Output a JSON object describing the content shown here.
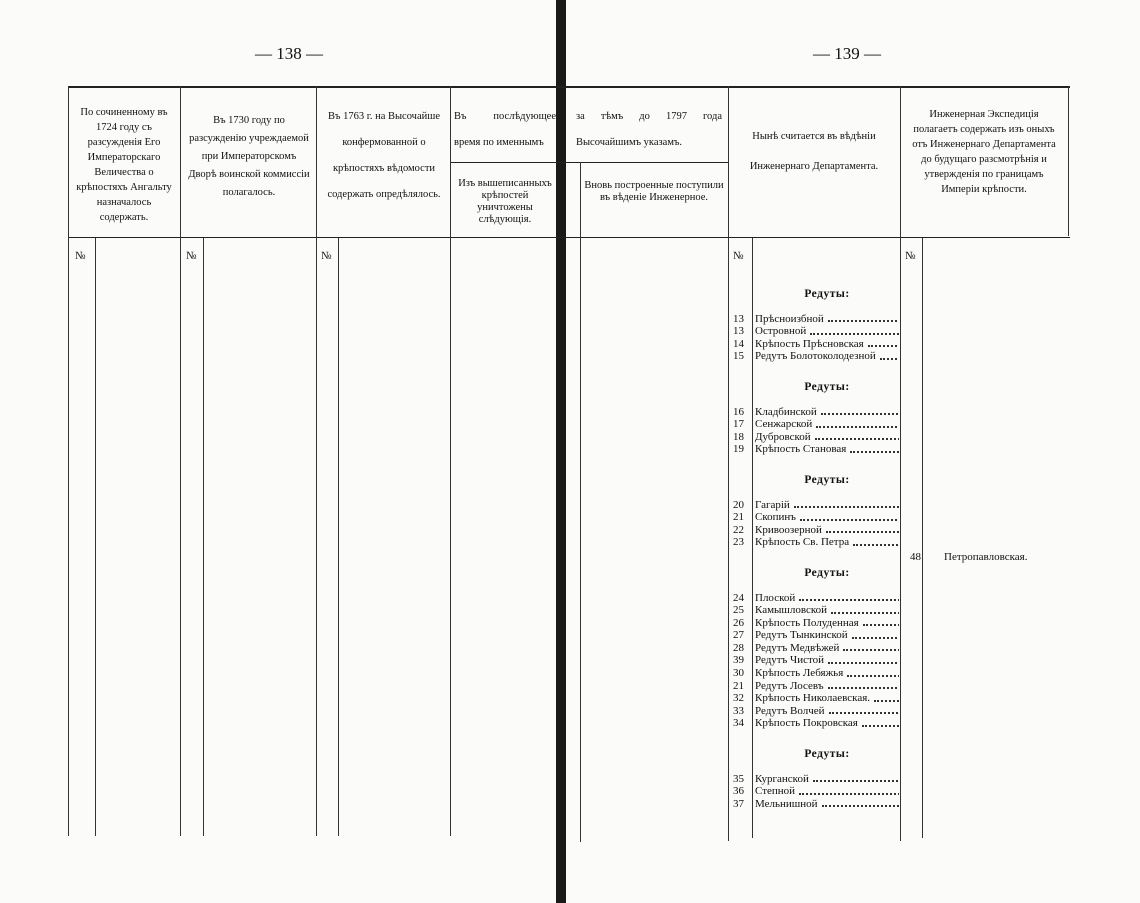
{
  "pages": {
    "left": "— 138 —",
    "right": "— 139 —"
  },
  "header": {
    "col1": "По сочиненному въ 1724 году съ разсужденія Его Императорскаго Величества о крѣпостяхъ Ангальту назначалось содержать.",
    "col2": "Въ 1730 году по разсужденію учреждаемой при Императорскомъ Дворѣ воинской коммиссіи полагалось.",
    "col3": "Въ 1763 г. на Высочайше конфермованной о крѣпостяхъ вѣдомости содержать опредѣлялось.",
    "col4_left": "Въ послѣдующее время по именнымъ",
    "col4_right": "за тѣмъ до 1797 года Высочайшимъ указамъ.",
    "col4_sub_left": "Изъ вышеписанныхъ крѣпостей уничтожены слѣдующія.",
    "col4_sub_right": "Вновь построенные поступили въ вѣденіе Инженерное.",
    "col6": "Нынѣ считается въ вѣдѣніи Инженернаго Департамента.",
    "col7": "Инженерная Экспедиція полагаетъ содержать изъ оныхъ отъ Инженернаго Департамента до будущаго разсмотрѣнія и утвержденія по границамъ Имперіи крѣпости."
  },
  "number_sign": "№",
  "entries": [
    {
      "heading": "Редуты:",
      "items": [
        {
          "number": 13,
          "name": "Прѣсноизбной"
        },
        {
          "number": 13,
          "name": "Островной"
        },
        {
          "number": 14,
          "name": "Крѣпость Прѣсновская"
        },
        {
          "number": 15,
          "name": "Редутъ Болотоколодезной"
        }
      ]
    },
    {
      "heading": "Редуты:",
      "items": [
        {
          "number": 16,
          "name": "Кладбинской"
        },
        {
          "number": 17,
          "name": "Сенжарской"
        },
        {
          "number": 18,
          "name": "Дубровской"
        },
        {
          "number": 19,
          "name": "Крѣпость Становая"
        }
      ]
    },
    {
      "heading": "Редуты:",
      "items": [
        {
          "number": 20,
          "name": "Гагарій"
        },
        {
          "number": 21,
          "name": "Скопинъ"
        },
        {
          "number": 22,
          "name": "Кривоозерной"
        },
        {
          "number": 23,
          "name": "Крѣпость Св. Петра"
        }
      ]
    },
    {
      "heading": "Редуты:",
      "items": [
        {
          "number": 24,
          "name": "Плоской"
        },
        {
          "number": 25,
          "name": "Камышловской"
        },
        {
          "number": 26,
          "name": "Крѣпость Полуденная"
        },
        {
          "number": 27,
          "name": "Редутъ Тынкинской"
        },
        {
          "number": 28,
          "name": "Редутъ Медвѣжей"
        },
        {
          "number": 39,
          "name": "Редутъ Чистой"
        },
        {
          "number": 30,
          "name": "Крѣпость Лебяжья"
        },
        {
          "number": 21,
          "name": "Редутъ Лосевъ"
        },
        {
          "number": 32,
          "name": "Крѣпость Николаевская."
        },
        {
          "number": 33,
          "name": "Редутъ Волчей"
        },
        {
          "number": 34,
          "name": "Крѣпость Покровская"
        }
      ]
    },
    {
      "heading": "Редуты:",
      "items": [
        {
          "number": 35,
          "name": "Курганской"
        },
        {
          "number": 36,
          "name": "Степной"
        },
        {
          "number": 37,
          "name": "Мельнишной"
        }
      ]
    }
  ],
  "last_column": {
    "number": 48,
    "name": "Петропавловская."
  }
}
